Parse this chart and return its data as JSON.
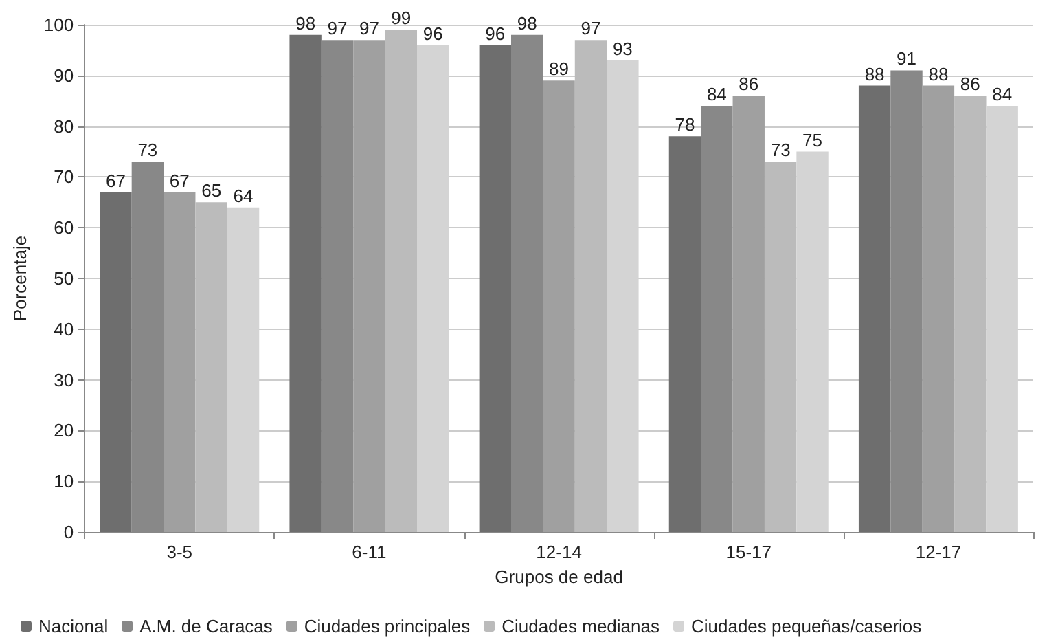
{
  "chart_data": {
    "type": "bar",
    "xlabel": "Grupos de edad",
    "ylabel": "Porcentaje",
    "categories": [
      "3-5",
      "6-11",
      "12-14",
      "15-17",
      "12-17"
    ],
    "series": [
      {
        "name": "Nacional",
        "color": "#6e6e6e",
        "values": [
          67,
          98,
          96,
          78,
          88
        ]
      },
      {
        "name": "A.M. de Caracas",
        "color": "#888888",
        "values": [
          73,
          97,
          98,
          84,
          91
        ]
      },
      {
        "name": "Ciudades principales",
        "color": "#a0a0a0",
        "values": [
          67,
          97,
          89,
          86,
          88
        ]
      },
      {
        "name": "Ciudades medianas",
        "color": "#bbbbbb",
        "values": [
          65,
          99,
          97,
          73,
          86
        ]
      },
      {
        "name": "Ciudades pequeñas/caserios",
        "color": "#d4d4d4",
        "values": [
          64,
          96,
          93,
          75,
          84
        ]
      }
    ],
    "ylim": [
      0,
      100
    ],
    "yticks": [
      0,
      10,
      20,
      30,
      40,
      50,
      60,
      70,
      80,
      90,
      100
    ],
    "grid": "y",
    "data_labels": true,
    "legend": "bottom"
  }
}
